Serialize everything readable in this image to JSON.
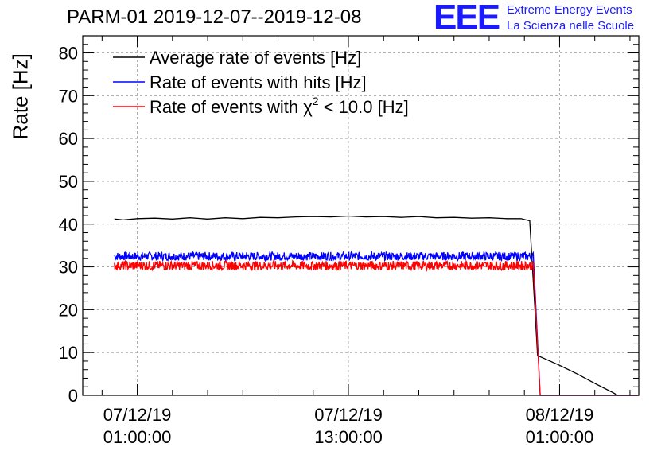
{
  "chart_data": {
    "type": "line",
    "title": "PARM-01 2019-12-07--2019-12-08",
    "ylabel": "Rate [Hz]",
    "xlabel": "",
    "ylim": [
      0,
      84
    ],
    "yticks": [
      "0",
      "10",
      "20",
      "30",
      "40",
      "50",
      "60",
      "70",
      "80"
    ],
    "xticks": [
      {
        "date": "07/12/19",
        "time": "01:00:00",
        "hours": 1
      },
      {
        "date": "07/12/19",
        "time": "13:00:00",
        "hours": 13
      },
      {
        "date": "08/12/19",
        "time": "01:00:00",
        "hours": 25
      }
    ],
    "xlim_hours": [
      -2.1,
      29.5
    ],
    "legend": [
      {
        "label": "Average rate of events [Hz]",
        "color": "#000000"
      },
      {
        "label": "Rate of events with hits [Hz]",
        "color": "#0000ff"
      },
      {
        "label_prefix": "Rate of events with ",
        "label_symbol": "χ",
        "label_sup": "2",
        "label_suffix": " < 10.0 [Hz]",
        "color": "#ff0000"
      }
    ],
    "series": [
      {
        "name": "Average rate of events [Hz]",
        "color": "#000000",
        "hours": [
          -0.3,
          0.2,
          1.0,
          2.0,
          3.0,
          4.0,
          5.0,
          6.0,
          7.0,
          8.0,
          9.0,
          10.0,
          11.0,
          12.0,
          13.0,
          14.0,
          15.0,
          16.0,
          17.0,
          18.0,
          19.0,
          20.0,
          21.0,
          22.0,
          22.8,
          23.3,
          23.6,
          23.75,
          25.0,
          26.0,
          27.0,
          28.0,
          28.3,
          29.5
        ],
        "values": [
          41.2,
          41.0,
          41.3,
          41.4,
          41.2,
          41.5,
          41.2,
          41.5,
          41.3,
          41.6,
          41.5,
          41.7,
          41.8,
          41.7,
          41.9,
          41.7,
          41.8,
          41.6,
          41.8,
          41.5,
          41.6,
          41.4,
          41.5,
          41.3,
          41.3,
          40.8,
          20.0,
          9.3,
          7.0,
          5.0,
          2.8,
          0.7,
          0.0,
          0.0
        ]
      },
      {
        "name": "Rate of events with hits [Hz]",
        "color": "#0000ff",
        "mean": 32.5,
        "noise": 1.0,
        "hours_start": -0.3,
        "hours_end": 23.5,
        "drop_to": 0.0,
        "drop_end": 23.9,
        "tail_end": 29.5
      },
      {
        "name": "Rate of events with χ2 < 10.0 [Hz]",
        "color": "#ff0000",
        "mean": 30.3,
        "noise": 1.1,
        "hours_start": -0.3,
        "hours_end": 23.5,
        "drop_to": 0.0,
        "drop_end": 23.9,
        "tail_end": 29.5
      }
    ],
    "grid": true,
    "legend_position": "top-left"
  },
  "logo": {
    "mark": "EEE",
    "line1": "Extreme Energy Events",
    "line2": "La Scienza nelle Scuole"
  }
}
